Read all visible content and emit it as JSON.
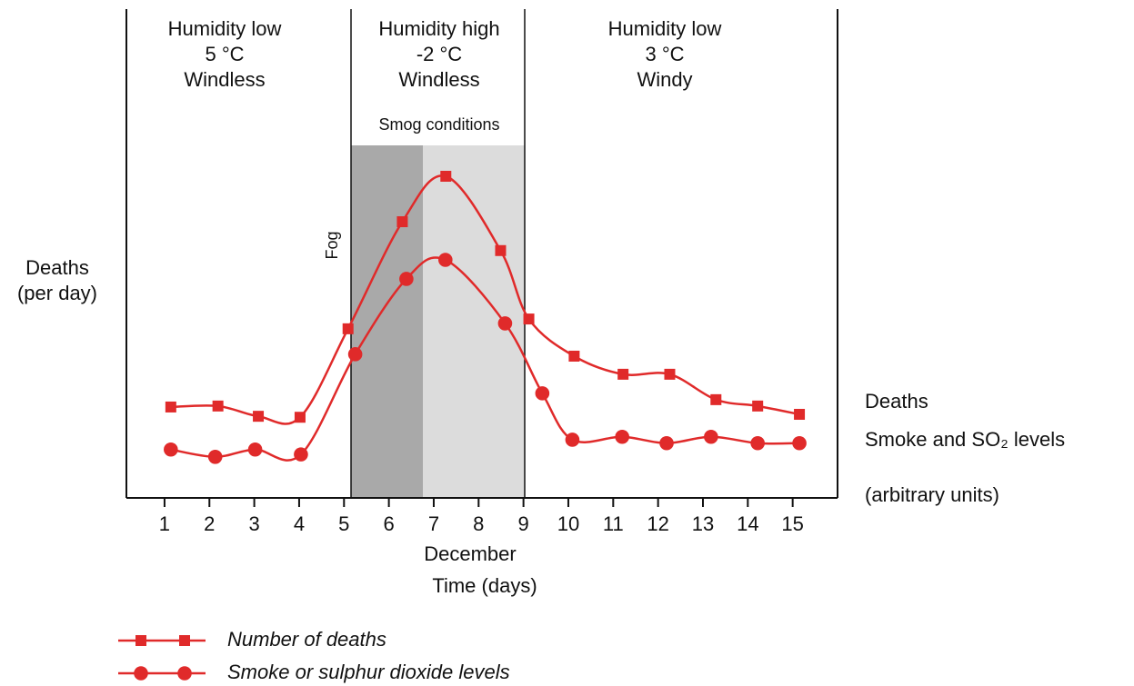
{
  "chart_data": {
    "type": "line",
    "regions": [
      {
        "lines": [
          "Humidity low",
          "5 °C",
          "Windless"
        ]
      },
      {
        "lines": [
          "Humidity high",
          "-2 °C",
          "Windless"
        ]
      },
      {
        "lines": [
          "Humidity low",
          "3 °C",
          "Windy"
        ]
      }
    ],
    "smog_label": "Smog conditions",
    "fog_label": "Fog",
    "ylabel": [
      "Deaths",
      "(per day)"
    ],
    "xlabel": [
      "December",
      "Time (days)"
    ],
    "right_labels": [
      "Deaths",
      "Smoke and SO₂ levels"
    ],
    "units_note": "(arbitrary units)",
    "xlim": [
      0.15,
      16
    ],
    "xticks": [
      1,
      2,
      3,
      4,
      5,
      6,
      7,
      8,
      9,
      10,
      11,
      12,
      13,
      14,
      15
    ],
    "ylim": [
      0,
      100
    ],
    "series": [
      {
        "name": "Number of deaths",
        "color": "#e02a2a",
        "marker": "square",
        "x": [
          1.14,
          2.19,
          3.09,
          4.02,
          5.09,
          6.3,
          7.27,
          8.49,
          9.12,
          10.13,
          11.22,
          12.26,
          13.29,
          14.22,
          15.15
        ],
        "values": [
          18.6,
          18.8,
          16.7,
          16.5,
          34.6,
          56.5,
          65.8,
          50.6,
          36.6,
          29.0,
          25.3,
          25.3,
          20.1,
          18.8,
          17.1
        ]
      },
      {
        "name": "Smoke or sulphur dioxide levels",
        "color": "#e02a2a",
        "marker": "circle",
        "x": [
          1.14,
          2.13,
          3.02,
          4.04,
          5.25,
          6.39,
          7.26,
          8.59,
          9.42,
          10.09,
          11.2,
          12.19,
          13.18,
          14.22,
          15.15
        ],
        "values": [
          9.9,
          8.4,
          9.9,
          8.9,
          29.4,
          44.8,
          48.7,
          35.7,
          21.4,
          11.9,
          12.5,
          11.2,
          12.5,
          11.2,
          11.2
        ]
      }
    ]
  }
}
